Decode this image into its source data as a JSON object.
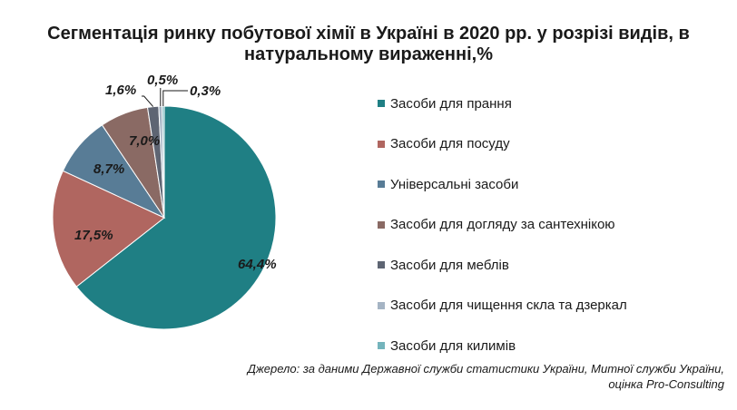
{
  "title_line1": "Сегментація ринку побутової хімії в Україні в 2020 рр. у розрізі видів, в",
  "title_line2": "натуральному вираженні,%",
  "source_line1": "Джерело: за даними Державної служби статистики України, Митної служби України,",
  "source_line2": "оцінка Pro-Consulting",
  "chart_data": {
    "type": "pie",
    "title": "Сегментація ринку побутової хімії в Україні в 2020 рр. у розрізі видів, в натуральному вираженні,%",
    "legend_position": "right",
    "slices": [
      {
        "name": "Засоби для прання",
        "value": 64.4,
        "label": "64,4%",
        "color": "#1f7f84"
      },
      {
        "name": "Засоби для посуду",
        "value": 17.5,
        "label": "17,5%",
        "color": "#b06660"
      },
      {
        "name": "Універсальні засоби",
        "value": 8.7,
        "label": "8,7%",
        "color": "#587c96"
      },
      {
        "name": "Засоби для догляду за сантехнікою",
        "value": 7.0,
        "label": "7,0%",
        "color": "#8a6a64"
      },
      {
        "name": "Засоби для меблів",
        "value": 1.6,
        "label": "1,6%",
        "color": "#5e6573"
      },
      {
        "name": "Засоби для чищення скла та дзеркал",
        "value": 0.5,
        "label": "0,5%",
        "color": "#a5b4c4"
      },
      {
        "name": "Засоби для килимів",
        "value": 0.3,
        "label": "0,3%",
        "color": "#74b4bc"
      }
    ]
  }
}
